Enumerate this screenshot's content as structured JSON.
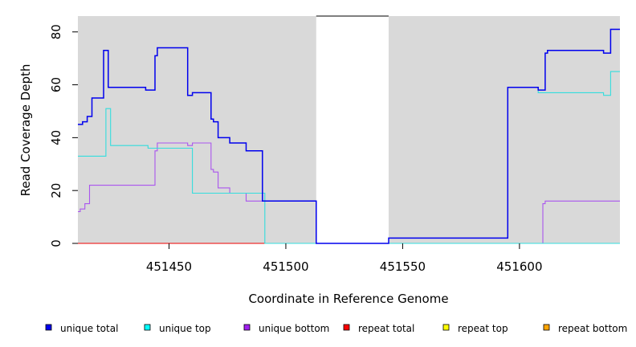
{
  "chart_data": {
    "type": "line",
    "step": true,
    "xlabel": "Coordinate in Reference Genome",
    "ylabel": "Read Coverage Depth",
    "xlim": [
      451411,
      451643
    ],
    "ylim": [
      0,
      86
    ],
    "x_ticks": [
      451450,
      451500,
      451550,
      451600
    ],
    "y_ticks": [
      0,
      20,
      40,
      60,
      80
    ],
    "background_color": "#d9d9d9",
    "uncovered_region": [
      451513,
      451544
    ],
    "legend_position": "bottom",
    "series": [
      {
        "name": "unique total",
        "color": "#0000ee",
        "points": [
          [
            451411,
            45
          ],
          [
            451413,
            46
          ],
          [
            451415,
            48
          ],
          [
            451417,
            55
          ],
          [
            451422,
            73
          ],
          [
            451424,
            59
          ],
          [
            451440,
            58
          ],
          [
            451444,
            71
          ],
          [
            451445,
            74
          ],
          [
            451458,
            56
          ],
          [
            451460,
            57
          ],
          [
            451468,
            47
          ],
          [
            451469,
            46
          ],
          [
            451471,
            40
          ],
          [
            451476,
            38
          ],
          [
            451483,
            35
          ],
          [
            451490,
            16
          ],
          [
            451513,
            0
          ],
          [
            451544,
            2
          ],
          [
            451595,
            59
          ],
          [
            451608,
            58
          ],
          [
            451611,
            72
          ],
          [
            451612,
            73
          ],
          [
            451636,
            72
          ],
          [
            451639,
            81
          ],
          [
            451643,
            81
          ]
        ]
      },
      {
        "name": "unique top",
        "color": "#33dddd",
        "points": [
          [
            451411,
            33
          ],
          [
            451423,
            51
          ],
          [
            451425,
            37
          ],
          [
            451440,
            37
          ],
          [
            451441,
            36
          ],
          [
            451444,
            36
          ],
          [
            451460,
            19
          ],
          [
            451491,
            0
          ],
          [
            451512,
            0
          ],
          [
            451513,
            0
          ],
          [
            451643,
            0
          ]
        ],
        "extra_segments": [
          [
            [
              451595,
              59
            ],
            [
              451608,
              57
            ],
            [
              451636,
              56
            ],
            [
              451639,
              65
            ],
            [
              451643,
              65
            ]
          ]
        ]
      },
      {
        "name": "unique bottom",
        "color": "#aa55ee",
        "points": [
          [
            451411,
            12
          ],
          [
            451412,
            13
          ],
          [
            451414,
            15
          ],
          [
            451416,
            22
          ],
          [
            451444,
            35
          ],
          [
            451445,
            38
          ],
          [
            451458,
            37
          ],
          [
            451460,
            38
          ],
          [
            451468,
            28
          ],
          [
            451469,
            27
          ],
          [
            451471,
            21
          ],
          [
            451476,
            19
          ],
          [
            451483,
            16
          ],
          [
            451490,
            16
          ],
          [
            451513,
            0
          ],
          [
            451610,
            15
          ],
          [
            451611,
            16
          ],
          [
            451643,
            16
          ]
        ]
      },
      {
        "name": "repeat total",
        "color": "#ee0000",
        "points": [
          [
            451411,
            0
          ],
          [
            451643,
            0
          ]
        ]
      },
      {
        "name": "repeat top",
        "color": "#ffff00",
        "points": [
          [
            451411,
            0
          ],
          [
            451643,
            0
          ]
        ]
      },
      {
        "name": "repeat bottom",
        "color": "#ffa500",
        "points": [
          [
            451411,
            0
          ],
          [
            451643,
            0
          ]
        ]
      }
    ],
    "legend": [
      {
        "label": "unique total",
        "color": "#0000ee"
      },
      {
        "label": "unique top",
        "color": "#00ffff"
      },
      {
        "label": "unique bottom",
        "color": "#a020f0"
      },
      {
        "label": "repeat total",
        "color": "#ff0000"
      },
      {
        "label": "repeat top",
        "color": "#ffff00"
      },
      {
        "label": "repeat bottom",
        "color": "#ffa500"
      }
    ]
  }
}
